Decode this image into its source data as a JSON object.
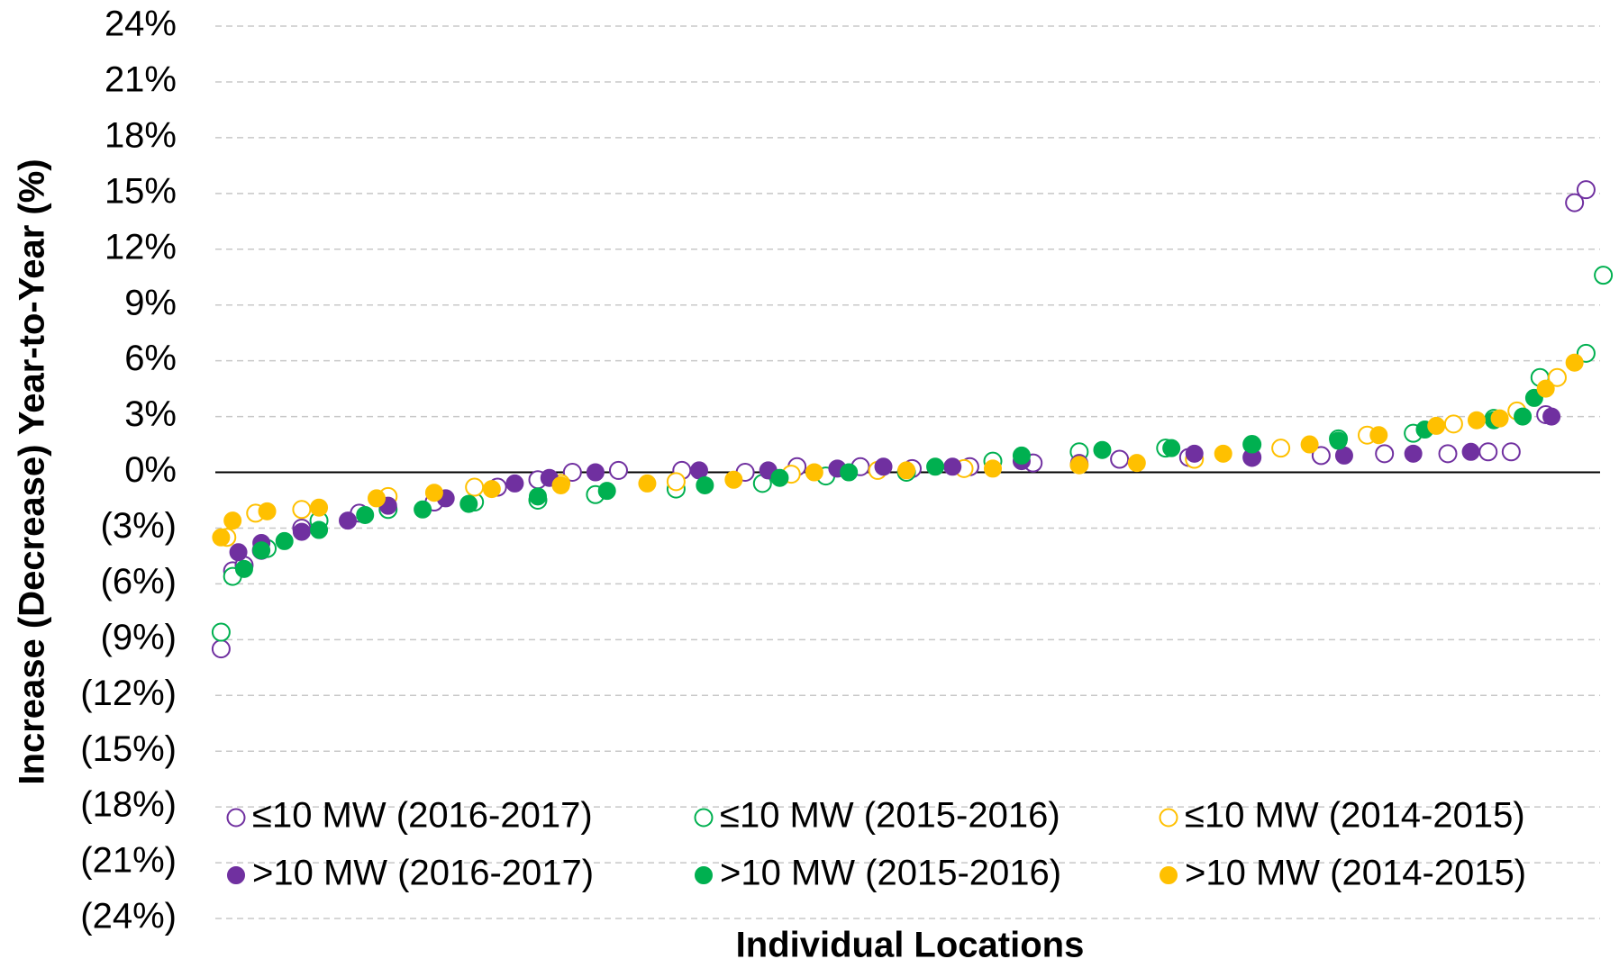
{
  "chart_data": {
    "type": "scatter",
    "x_label": "Individual Locations",
    "y_label": "Increase (Decrease) Year-to-Year (%)",
    "xlim": [
      0,
      242
    ],
    "ylim": [
      -24,
      24
    ],
    "yticks": [
      {
        "value": 24,
        "label": "24%"
      },
      {
        "value": 21,
        "label": "21%"
      },
      {
        "value": 18,
        "label": "18%"
      },
      {
        "value": 15,
        "label": "15%"
      },
      {
        "value": 12,
        "label": "12%"
      },
      {
        "value": 9,
        "label": "9%"
      },
      {
        "value": 6,
        "label": "6%"
      },
      {
        "value": 3,
        "label": "3%"
      },
      {
        "value": 0,
        "label": "0%"
      },
      {
        "value": -3,
        "label": "(3%)"
      },
      {
        "value": -6,
        "label": "(6%)"
      },
      {
        "value": -9,
        "label": "(9%)"
      },
      {
        "value": -12,
        "label": "(12%)"
      },
      {
        "value": -15,
        "label": "(15%)"
      },
      {
        "value": -18,
        "label": "(18%)"
      },
      {
        "value": -21,
        "label": "(21%)"
      },
      {
        "value": -24,
        "label": "(24%)"
      }
    ],
    "grid": true,
    "legend": "bottom",
    "series": [
      {
        "name": "≤10 MW (2016-2017)",
        "color": "#7030a0",
        "marker": "open",
        "x": [
          1,
          3,
          5,
          8,
          15,
          25,
          38,
          49,
          56,
          62,
          70,
          81,
          92,
          101,
          112,
          121,
          131,
          142,
          157,
          169,
          180,
          192,
          203,
          214,
          221,
          225,
          231,
          236,
          238
        ],
        "values": [
          -9.5,
          -5.3,
          -5.0,
          -4.2,
          -3.0,
          -2.2,
          -1.6,
          -0.8,
          -0.4,
          0.0,
          0.1,
          0.1,
          0.0,
          0.3,
          0.3,
          0.2,
          0.3,
          0.5,
          0.7,
          0.8,
          0.8,
          0.9,
          1.0,
          1.0,
          1.1,
          1.1,
          3.1,
          14.5,
          15.2
        ]
      },
      {
        "name": "≤10 MW (2015-2016)",
        "color": "#00b050",
        "marker": "open",
        "x": [
          1,
          3,
          9,
          18,
          30,
          45,
          56,
          66,
          80,
          95,
          106,
          120,
          135,
          150,
          165,
          180,
          195,
          208,
          222,
          230,
          238,
          241
        ],
        "values": [
          -8.6,
          -5.6,
          -4.1,
          -2.6,
          -2.0,
          -1.6,
          -1.5,
          -1.2,
          -0.9,
          -0.6,
          -0.2,
          0.0,
          0.6,
          1.1,
          1.3,
          1.5,
          1.8,
          2.1,
          2.9,
          5.1,
          6.4,
          10.6
        ]
      },
      {
        "name": "≤10 MW (2014-2015)",
        "color": "#ffc000",
        "marker": "open",
        "x": [
          2,
          7,
          15,
          30,
          45,
          60,
          80,
          100,
          115,
          130,
          150,
          170,
          185,
          200,
          215,
          226,
          233
        ],
        "values": [
          -3.5,
          -2.2,
          -2.0,
          -1.3,
          -0.8,
          -0.6,
          -0.5,
          -0.1,
          0.1,
          0.2,
          0.4,
          0.7,
          1.3,
          2.0,
          2.6,
          3.3,
          5.1
        ]
      },
      {
        "name": ">10 MW (2016-2017)",
        "color": "#7030a0",
        "marker": "filled",
        "x": [
          4,
          8,
          15,
          23,
          30,
          40,
          52,
          58,
          66,
          84,
          96,
          108,
          116,
          128,
          140,
          150,
          170,
          180,
          196,
          208,
          218,
          232
        ],
        "values": [
          -4.3,
          -3.8,
          -3.2,
          -2.6,
          -1.8,
          -1.4,
          -0.6,
          -0.3,
          0.0,
          0.1,
          0.1,
          0.2,
          0.3,
          0.3,
          0.6,
          0.5,
          1.0,
          0.8,
          0.9,
          1.0,
          1.1,
          3.0
        ]
      },
      {
        "name": ">10 MW (2015-2016)",
        "color": "#00b050",
        "marker": "filled",
        "x": [
          5,
          8,
          12,
          18,
          26,
          36,
          44,
          56,
          68,
          85,
          98,
          110,
          125,
          140,
          154,
          166,
          180,
          195,
          210,
          222,
          227,
          229
        ],
        "values": [
          -5.2,
          -4.2,
          -3.7,
          -3.1,
          -2.3,
          -2.0,
          -1.7,
          -1.3,
          -1.0,
          -0.7,
          -0.3,
          0.0,
          0.3,
          0.9,
          1.2,
          1.3,
          1.5,
          1.7,
          2.3,
          2.8,
          3.0,
          4.0
        ]
      },
      {
        "name": ">10 MW (2014-2015)",
        "color": "#ffc000",
        "marker": "filled",
        "x": [
          1,
          3,
          9,
          18,
          28,
          38,
          48,
          60,
          75,
          90,
          104,
          120,
          135,
          150,
          160,
          175,
          190,
          202,
          212,
          219,
          223,
          231,
          236
        ],
        "values": [
          -3.5,
          -2.6,
          -2.1,
          -1.9,
          -1.4,
          -1.1,
          -0.9,
          -0.7,
          -0.6,
          -0.4,
          0.0,
          0.1,
          0.2,
          0.4,
          0.5,
          1.0,
          1.5,
          2.0,
          2.5,
          2.8,
          2.9,
          4.5,
          5.9
        ]
      }
    ]
  }
}
